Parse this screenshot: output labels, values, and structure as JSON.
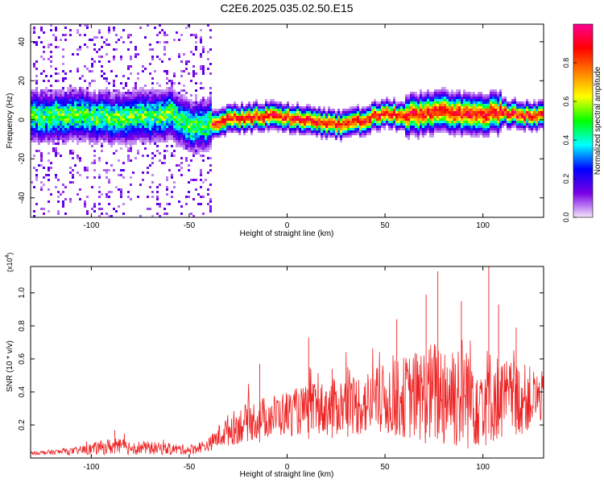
{
  "figure_title": "C2E6.2025.035.02.50.E15",
  "chart_data": [
    {
      "type": "heatmap",
      "title": "C2E6.2025.035.02.50.E15",
      "xlabel": "Height of straight line (km)",
      "ylabel": "Frequency (Hz)",
      "xlim": [
        -131,
        131
      ],
      "ylim": [
        -50,
        49
      ],
      "x_ticks": [
        -100,
        -50,
        0,
        50,
        100
      ],
      "y_ticks": [
        -40,
        -20,
        0,
        20,
        40
      ],
      "colorbar": {
        "label": "Normalized spectral amplitude",
        "range": [
          0.0,
          1.0
        ],
        "ticks": [
          0.0,
          0.2,
          0.4,
          0.6,
          0.8
        ],
        "tick_labels": [
          "0.0",
          "0.2",
          "0.4",
          "0.6",
          "0.8"
        ],
        "colors": [
          "#f2e6fb",
          "#7a00e6",
          "#0000ff",
          "#00ffff",
          "#00ff00",
          "#ffff00",
          "#ff7f00",
          "#ff0000",
          "#ff0090"
        ]
      },
      "ridge_x": [
        -131,
        -120,
        -110,
        -100,
        -90,
        -80,
        -70,
        -60,
        -50,
        -40,
        -30,
        -20,
        -10,
        0,
        10,
        20,
        30,
        40,
        50,
        60,
        70,
        80,
        90,
        100,
        110,
        120,
        131
      ],
      "ridge_freq_hz": [
        2,
        1,
        3,
        2,
        1,
        2,
        1,
        3,
        -3,
        -2,
        0,
        1,
        2,
        1,
        0,
        -2,
        -3,
        0,
        3,
        2,
        3,
        4,
        3,
        3,
        4,
        2,
        2
      ],
      "noise_region_until_km": -38
    },
    {
      "type": "line",
      "xlabel": "Height of straight line (km)",
      "ylabel": "SNR (10 * v/v)",
      "y_scale_label": "(x10",
      "y_scale_exp": "4",
      "y_scale_close": ")",
      "xlim": [
        -131,
        131
      ],
      "ylim": [
        0,
        1.16
      ],
      "x_ticks": [
        -100,
        -50,
        0,
        50,
        100
      ],
      "y_ticks": [
        0.2,
        0.4,
        0.6,
        0.8,
        1.0
      ],
      "y_tick_labels": [
        "0.2",
        "0.4",
        "0.6",
        "0.8",
        "1.0"
      ],
      "color": "#ee2222",
      "envelope_x": [
        -131,
        -110,
        -90,
        -70,
        -50,
        -40,
        -35,
        -30,
        -20,
        -10,
        0,
        10,
        20,
        30,
        40,
        50,
        60,
        70,
        80,
        90,
        100,
        110,
        120,
        131
      ],
      "envelope_mean": [
        0.03,
        0.04,
        0.07,
        0.06,
        0.05,
        0.08,
        0.13,
        0.17,
        0.22,
        0.25,
        0.27,
        0.29,
        0.3,
        0.32,
        0.33,
        0.35,
        0.37,
        0.38,
        0.4,
        0.4,
        0.38,
        0.36,
        0.36,
        0.37
      ],
      "envelope_spread": [
        0.01,
        0.02,
        0.05,
        0.04,
        0.03,
        0.04,
        0.07,
        0.1,
        0.12,
        0.13,
        0.14,
        0.15,
        0.17,
        0.18,
        0.2,
        0.22,
        0.25,
        0.3,
        0.35,
        0.36,
        0.32,
        0.25,
        0.22,
        0.15
      ],
      "spikes": [
        {
          "x": -88,
          "y": 0.17
        },
        {
          "x": -14,
          "y": 0.57
        },
        {
          "x": 11,
          "y": 0.73
        },
        {
          "x": 23,
          "y": 0.54
        },
        {
          "x": 31,
          "y": 0.55
        },
        {
          "x": 56,
          "y": 0.84
        },
        {
          "x": 71,
          "y": 0.99
        },
        {
          "x": 77,
          "y": 1.13
        },
        {
          "x": 89,
          "y": 0.95
        },
        {
          "x": 103,
          "y": 1.16
        },
        {
          "x": 108,
          "y": 0.93
        },
        {
          "x": 117,
          "y": 0.79
        }
      ]
    }
  ]
}
